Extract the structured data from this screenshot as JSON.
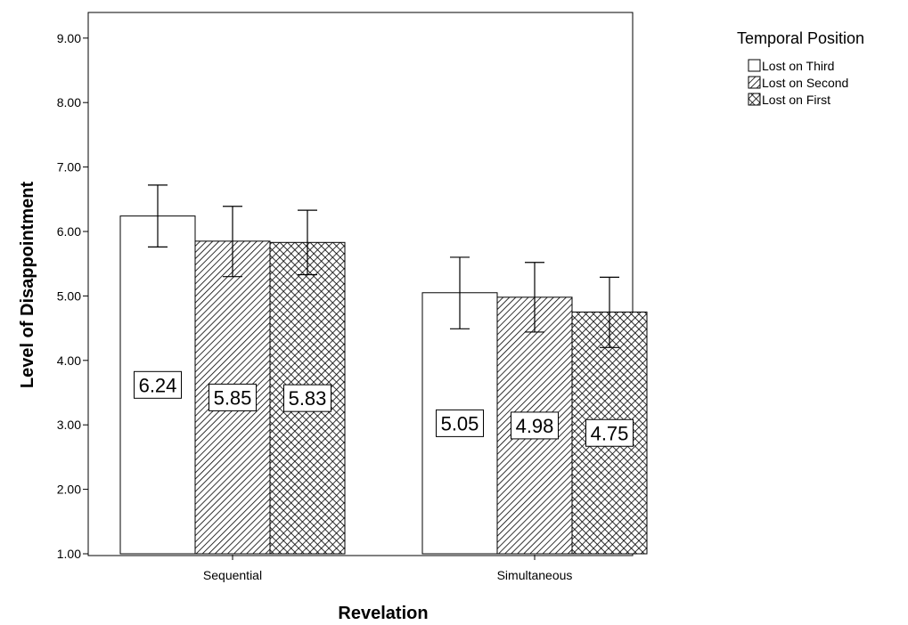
{
  "chart_data": {
    "type": "bar",
    "categories": [
      "Sequential",
      "Simultaneous"
    ],
    "xlabel": "Revelation",
    "ylabel": "Level of Disappointment",
    "ylim": [
      1.0,
      9.5
    ],
    "yticks": [
      "1.00",
      "2.00",
      "3.00",
      "4.00",
      "5.00",
      "6.00",
      "7.00",
      "8.00",
      "9.00"
    ],
    "grid": false,
    "legend": {
      "title": "Temporal Position",
      "placement": "right"
    },
    "series": [
      {
        "name": "Lost on Third",
        "pattern": "none",
        "values": [
          6.24,
          5.05
        ],
        "labels": [
          "6.24",
          "5.05"
        ],
        "error_low": [
          5.76,
          4.49
        ],
        "error_high": [
          6.72,
          5.6
        ]
      },
      {
        "name": "Lost on Second",
        "pattern": "diagonal",
        "values": [
          5.85,
          4.98
        ],
        "labels": [
          "5.85",
          "4.98"
        ],
        "error_low": [
          5.3,
          4.44
        ],
        "error_high": [
          6.39,
          5.52
        ]
      },
      {
        "name": "Lost on First",
        "pattern": "crosshatch",
        "values": [
          5.83,
          4.75
        ],
        "labels": [
          "5.83",
          "4.75"
        ],
        "error_low": [
          5.33,
          4.2
        ],
        "error_high": [
          6.33,
          5.29
        ]
      }
    ],
    "colors": {
      "stroke": "#000000",
      "fill": "#ffffff"
    }
  }
}
